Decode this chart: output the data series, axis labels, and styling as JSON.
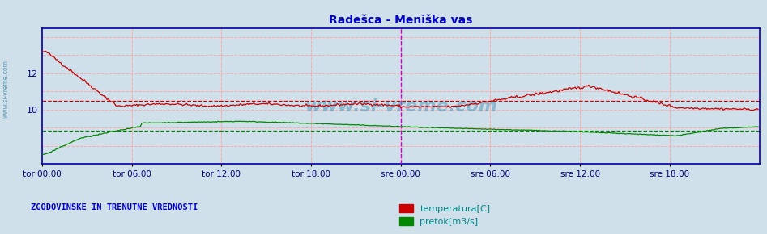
{
  "title": "Radešca - Meniška vas",
  "title_color": "#0000cc",
  "bg_color": "#cfe0ea",
  "plot_bg_color": "#cfe0ea",
  "x_labels": [
    "tor 00:00",
    "tor 06:00",
    "tor 12:00",
    "tor 18:00",
    "sre 00:00",
    "sre 06:00",
    "sre 12:00",
    "sre 18:00"
  ],
  "y_ticks": [
    10,
    12
  ],
  "ylim": [
    7.0,
    14.5
  ],
  "xlim": [
    0,
    576
  ],
  "temp_color": "#cc0000",
  "flow_color": "#008800",
  "vline_color": "#cc00cc",
  "legend_text_color": "#008888",
  "watermark_color": "#5599bb",
  "watermark_text": "www.si-vreme.com",
  "legend_label1": "temperatura[C]",
  "legend_label2": "pretok[m3/s]",
  "bottom_text": "ZGODOVINSKE IN TRENUTNE VREDNOSTI",
  "n_points": 576,
  "x_tick_positions": [
    0,
    72,
    144,
    216,
    288,
    360,
    432,
    504
  ],
  "temp_avg_line": 10.5,
  "flow_avg_line": 8.85,
  "grid_y": [
    8,
    9,
    10,
    11,
    12,
    13,
    14
  ],
  "border_color": "#0000aa"
}
